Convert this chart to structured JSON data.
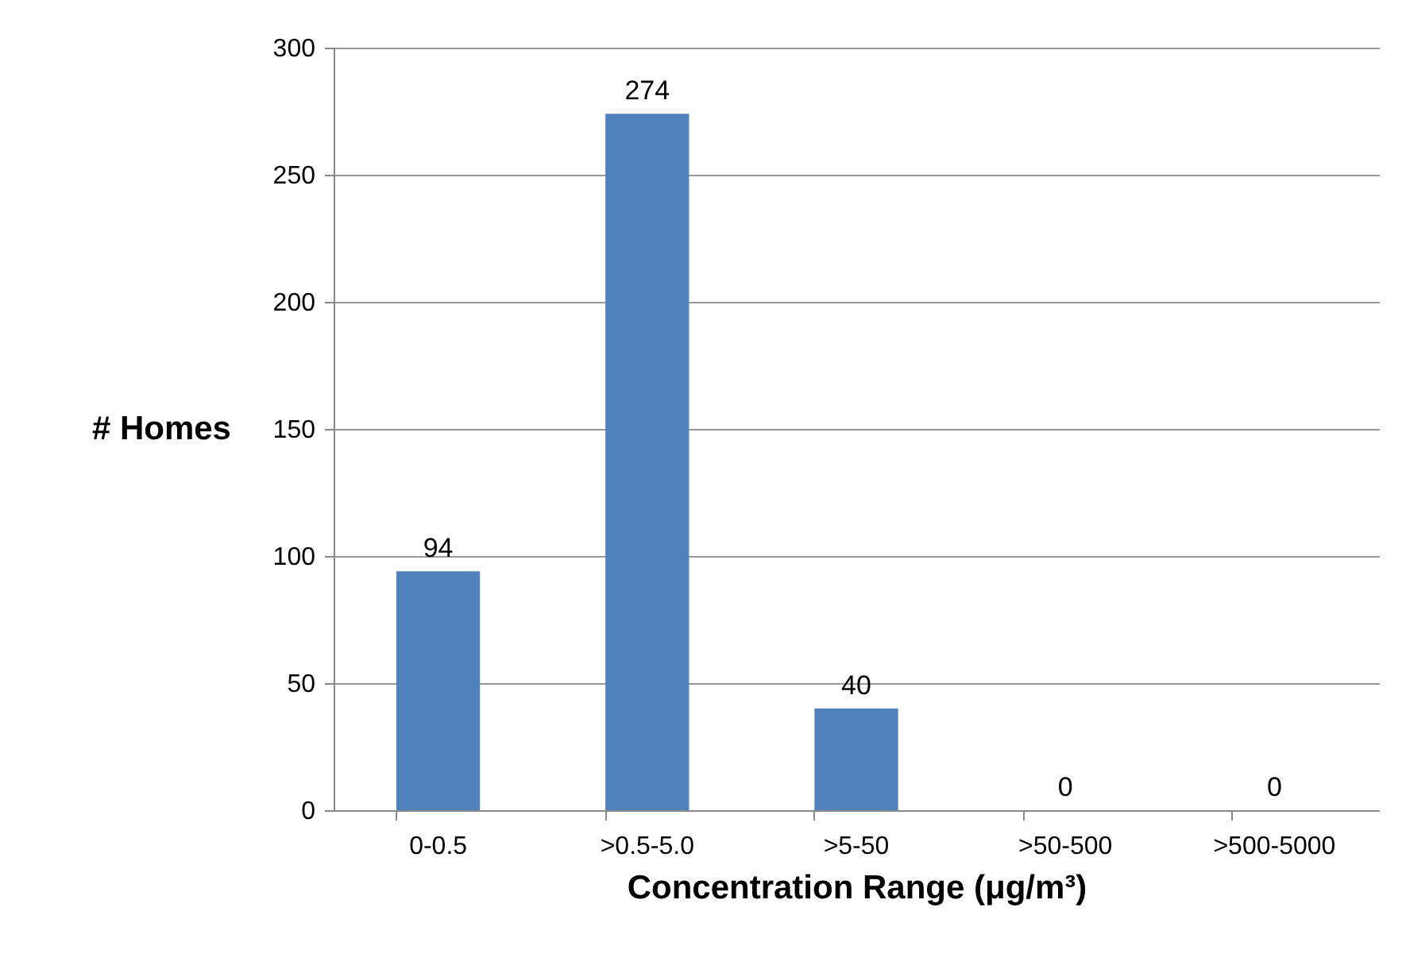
{
  "chart_data": {
    "type": "bar",
    "xlabel": "Concentration Range (μg/m³)",
    "ylabel": "# Homes",
    "categories": [
      "0-0.5",
      ">0.5-5.0",
      ">5-50",
      ">50-500",
      ">500-5000"
    ],
    "values": [
      94,
      274,
      40,
      0,
      0
    ],
    "color": "#4f81bd",
    "ylim": [
      0,
      300
    ],
    "yticks": [
      0,
      50,
      100,
      150,
      200,
      250,
      300
    ],
    "grid": "y",
    "data_labels": true
  }
}
